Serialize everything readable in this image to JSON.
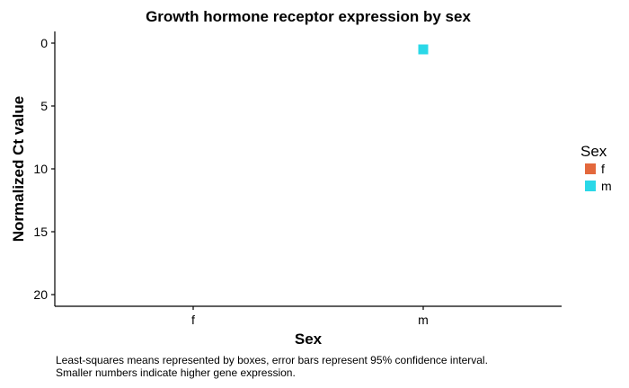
{
  "chart_data": {
    "type": "scatter",
    "title": "Growth hormone receptor expression by sex",
    "xlabel": "Sex",
    "ylabel": "Normalized Ct value",
    "categories": [
      "f",
      "m"
    ],
    "y_reversed": true,
    "ylim": [
      0,
      21
    ],
    "yticks": [
      0,
      5,
      10,
      15,
      20
    ],
    "grid": false,
    "legend": {
      "title": "Sex",
      "position": "right",
      "entries": [
        {
          "label": "f",
          "color": "#e3683c"
        },
        {
          "label": "m",
          "color": "#2ad8e8"
        }
      ]
    },
    "series": [
      {
        "name": "m",
        "x": "m",
        "y": 0.5,
        "color": "#2ad8e8"
      }
    ]
  },
  "caption": {
    "line1": "Least-squares means represented by boxes, error bars represent 95% confidence interval.",
    "line2": "Smaller numbers indicate higher gene expression."
  }
}
